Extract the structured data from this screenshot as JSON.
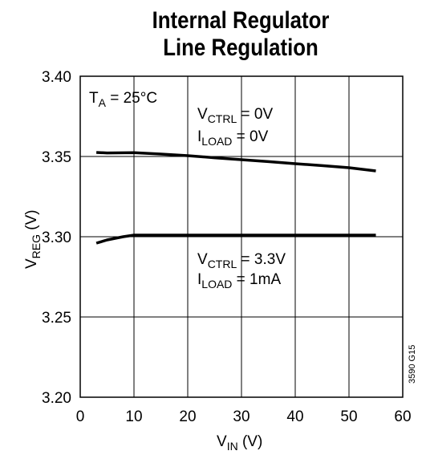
{
  "chart_data": {
    "type": "line",
    "title": "Internal Regulator",
    "subtitle": "Line Regulation",
    "xlabel": {
      "main": "V",
      "sub": "IN",
      "unit": " (V)"
    },
    "ylabel": {
      "main": "V",
      "sub": "REG",
      "unit": " (V)"
    },
    "xlim": [
      0,
      60
    ],
    "ylim": [
      3.2,
      3.4
    ],
    "xticks": [
      "0",
      "10",
      "20",
      "30",
      "40",
      "50",
      "60"
    ],
    "yticks": [
      "3.20",
      "3.25",
      "3.30",
      "3.35",
      "3.40"
    ],
    "grid": true,
    "series": [
      {
        "x": [
          3,
          5,
          10,
          15,
          20,
          25,
          30,
          35,
          40,
          45,
          50,
          55
        ],
        "y": [
          3.3525,
          3.3522,
          3.3524,
          3.3515,
          3.3505,
          3.3492,
          3.348,
          3.3468,
          3.3455,
          3.3443,
          3.343,
          3.341
        ]
      },
      {
        "x": [
          3,
          5,
          8,
          10,
          15,
          20,
          30,
          40,
          50,
          55
        ],
        "y": [
          3.296,
          3.298,
          3.3,
          3.301,
          3.301,
          3.301,
          3.301,
          3.301,
          3.301,
          3.301
        ]
      }
    ],
    "annotations": [
      {
        "main": "T",
        "sub": "A",
        "rest": " = 25°C"
      },
      {
        "main": "V",
        "sub": "CTRL",
        "rest": " = 0V"
      },
      {
        "main": "I",
        "sub": "LOAD",
        "rest": " = 0V"
      },
      {
        "main": "V",
        "sub": "CTRL",
        "rest": " = 3.3V"
      },
      {
        "main": "I",
        "sub": "LOAD",
        "rest": " = 1mA"
      }
    ],
    "figure_id": "3590 G15"
  }
}
